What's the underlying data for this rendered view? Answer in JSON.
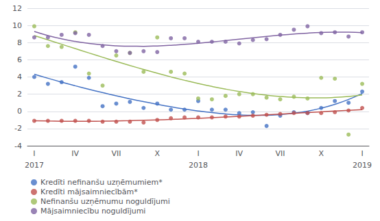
{
  "chart_data": {
    "type": "scatter",
    "x": [
      1,
      2,
      3,
      4,
      5,
      6,
      7,
      8,
      9,
      10,
      11,
      12,
      13,
      14,
      15,
      16,
      17,
      18,
      19,
      20,
      21,
      22,
      23,
      24,
      25
    ],
    "xlim": [
      0.5,
      25.5
    ],
    "xticks": [
      {
        "value": 1,
        "label": "I"
      },
      {
        "value": 4,
        "label": "IV"
      },
      {
        "value": 7,
        "label": "VII"
      },
      {
        "value": 10,
        "label": "X"
      },
      {
        "value": 13,
        "label": "I"
      },
      {
        "value": 16,
        "label": "IV"
      },
      {
        "value": 19,
        "label": "VII"
      },
      {
        "value": 22,
        "label": "X"
      },
      {
        "value": 25,
        "label": "I"
      }
    ],
    "annotations": [
      {
        "text": "2017",
        "x": 1
      },
      {
        "text": "2018",
        "x": 13
      },
      {
        "text": "2019",
        "x": 25
      }
    ],
    "ylim": [
      -4,
      12
    ],
    "yticks": [
      -4,
      -2,
      0,
      2,
      4,
      6,
      8,
      10,
      12
    ],
    "grid": true,
    "legend": "bottom",
    "series": [
      {
        "name": "Kredīti nefinanšu uzņēmumiem*",
        "color": "#4472C4",
        "values": [
          4.0,
          3.2,
          3.4,
          5.2,
          3.9,
          0.6,
          0.9,
          1.1,
          0.4,
          0.9,
          0.2,
          0.2,
          1.2,
          0.2,
          0.2,
          -0.2,
          -0.1,
          -1.7,
          -0.5,
          -0.1,
          -0.2,
          0.4,
          1.2,
          1.0,
          2.3
        ],
        "trend": [
          4.32,
          3.85,
          3.403,
          2.977,
          2.57,
          2.182,
          1.812,
          1.46,
          1.128,
          0.818,
          0.532,
          0.273,
          0.044,
          -0.148,
          -0.3,
          -0.405,
          -0.457,
          -0.448,
          -0.37,
          -0.214,
          0.028,
          0.368,
          0.815,
          1.382,
          2.08
        ]
      },
      {
        "name": "Kredīti mājsaimniecībām*",
        "color": "#C0504D",
        "values": [
          -1.1,
          -1.1,
          -1.1,
          -1.1,
          -1.1,
          -1.2,
          -1.2,
          -1.2,
          -1.3,
          -1.0,
          -0.8,
          -0.7,
          -0.7,
          -0.7,
          -0.6,
          -0.6,
          -0.5,
          -0.4,
          -0.3,
          -0.2,
          -0.2,
          -0.2,
          -0.1,
          0.1,
          0.4
        ],
        "trend": [
          -1.09,
          -1.124,
          -1.145,
          -1.154,
          -1.152,
          -1.138,
          -1.115,
          -1.083,
          -1.042,
          -0.993,
          -0.938,
          -0.875,
          -0.807,
          -0.734,
          -0.657,
          -0.575,
          -0.491,
          -0.405,
          -0.317,
          -0.229,
          -0.14,
          -0.052,
          0.035,
          0.12,
          0.202
        ]
      },
      {
        "name": "Nefinanšu uzņēmumu noguldījumi",
        "color": "#9BBB59",
        "values": [
          9.9,
          7.6,
          7.5,
          9.2,
          4.4,
          3.0,
          6.5,
          6.8,
          4.6,
          8.6,
          4.6,
          4.4,
          1.5,
          1.4,
          1.8,
          2.0,
          2.0,
          1.6,
          1.4,
          1.7,
          1.5,
          3.9,
          3.8,
          -2.7,
          3.2
        ],
        "trend": [
          8.823,
          8.317,
          7.809,
          7.301,
          6.798,
          6.3,
          5.812,
          5.336,
          4.875,
          4.432,
          4.01,
          3.612,
          3.24,
          2.898,
          2.588,
          2.314,
          2.078,
          1.883,
          1.732,
          1.627,
          1.573,
          1.571,
          1.625,
          1.737,
          1.91
        ]
      },
      {
        "name": "Mājsaimniecību noguldījumi",
        "color": "#8064A2",
        "values": [
          8.6,
          8.6,
          8.9,
          9.1,
          8.9,
          7.6,
          7.0,
          6.8,
          7.0,
          6.9,
          8.5,
          8.5,
          8.1,
          8.1,
          8.1,
          7.9,
          8.3,
          8.4,
          8.9,
          9.5,
          9.9,
          9.1,
          9.2,
          8.7,
          9.2
        ],
        "trend": [
          9.293,
          8.823,
          8.438,
          8.132,
          7.899,
          7.732,
          7.626,
          7.575,
          7.572,
          7.611,
          7.687,
          7.793,
          7.923,
          8.071,
          8.231,
          8.397,
          8.562,
          8.722,
          8.869,
          8.998,
          9.102,
          9.175,
          9.212,
          9.206,
          9.151
        ]
      }
    ]
  }
}
